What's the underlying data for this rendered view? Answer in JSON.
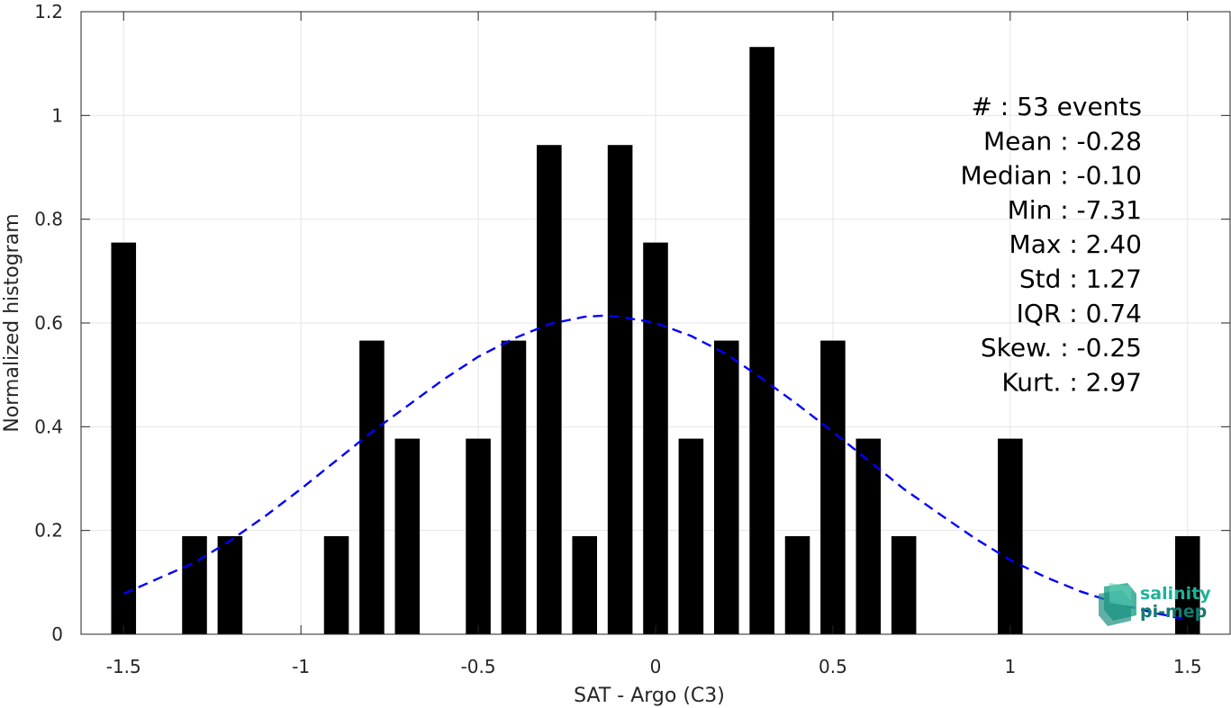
{
  "chart_data": {
    "type": "bar",
    "xlabel": "SAT - Argo (C3)",
    "ylabel": "Normalized histogram",
    "xlim": [
      -1.62,
      1.62
    ],
    "ylim": [
      0,
      1.2
    ],
    "xticks": [
      -1.5,
      -1,
      -0.5,
      0,
      0.5,
      1,
      1.5
    ],
    "xtick_labels": [
      "-1.5",
      "-1",
      "-0.5",
      "0",
      "0.5",
      "1",
      "1.5"
    ],
    "yticks": [
      0,
      0.2,
      0.4,
      0.6,
      0.8,
      1,
      1.2
    ],
    "ytick_labels": [
      "0",
      "0.2",
      "0.4",
      "0.6",
      "0.8",
      "1",
      "1.2"
    ],
    "grid": true,
    "bin_width": 0.1,
    "bins": {
      "x": [
        -1.5,
        -1.3,
        -1.2,
        -0.9,
        -0.8,
        -0.7,
        -0.5,
        -0.4,
        -0.3,
        -0.2,
        -0.1,
        0.0,
        0.1,
        0.2,
        0.3,
        0.4,
        0.5,
        0.6,
        0.7,
        1.0,
        1.5
      ],
      "values": [
        0.755,
        0.189,
        0.189,
        0.189,
        0.566,
        0.377,
        0.377,
        0.566,
        0.943,
        0.189,
        0.943,
        0.755,
        0.377,
        0.566,
        1.132,
        0.189,
        0.566,
        0.377,
        0.189,
        0.377,
        0.189
      ]
    },
    "fit_curve": {
      "style": "dashed",
      "color": "#0000ff",
      "x": [
        -1.5,
        -1.4,
        -1.3,
        -1.2,
        -1.1,
        -1.0,
        -0.9,
        -0.8,
        -0.7,
        -0.6,
        -0.5,
        -0.4,
        -0.3,
        -0.2,
        -0.15,
        -0.1,
        0.0,
        0.1,
        0.2,
        0.3,
        0.4,
        0.5,
        0.6,
        0.7,
        0.8,
        0.9,
        1.0,
        1.1,
        1.2,
        1.3,
        1.4,
        1.5
      ],
      "y": [
        0.078,
        0.108,
        0.138,
        0.18,
        0.228,
        0.28,
        0.335,
        0.39,
        0.44,
        0.49,
        0.535,
        0.57,
        0.598,
        0.612,
        0.614,
        0.612,
        0.6,
        0.575,
        0.54,
        0.493,
        0.443,
        0.39,
        0.335,
        0.28,
        0.232,
        0.185,
        0.143,
        0.11,
        0.082,
        0.06,
        0.042,
        0.028
      ]
    },
    "stats": [
      "#  : 53 events",
      "Mean : -0.28",
      "Median : -0.10",
      "Min : -7.31",
      "Max : 2.40",
      "Std : 1.27",
      "IQR : 0.74",
      "Skew. : -0.25",
      "Kurt. : 2.97"
    ]
  },
  "logo": {
    "line1": "salinity",
    "line2": "pi-mep"
  },
  "colors": {
    "bars": "#000000",
    "fit": "#0000ff",
    "grid": "#e6e6e6",
    "axis": "#262626",
    "logo": "#1bb39a"
  }
}
